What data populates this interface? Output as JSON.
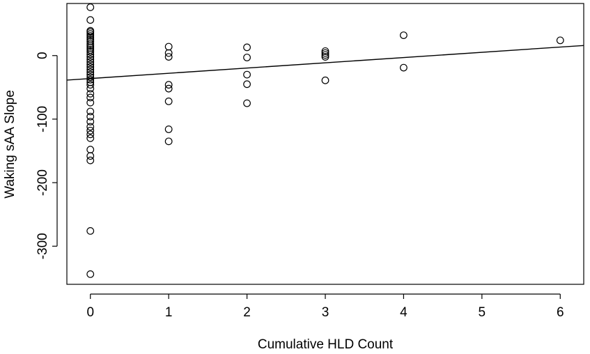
{
  "chart_data": {
    "type": "scatter",
    "xlabel": "Cumulative HLD Count",
    "ylabel": "Waking sAA Slope",
    "xlim": [
      -0.3,
      6.3
    ],
    "ylim": [
      -360,
      82
    ],
    "x_ticks": [
      0,
      1,
      2,
      3,
      4,
      5,
      6
    ],
    "y_ticks": [
      0,
      -100,
      -200,
      -300
    ],
    "grid": false,
    "legend": "none",
    "points": [
      [
        0,
        76
      ],
      [
        0,
        56
      ],
      [
        0,
        39
      ],
      [
        0,
        37
      ],
      [
        0,
        34
      ],
      [
        0,
        31
      ],
      [
        0,
        28
      ],
      [
        0,
        25
      ],
      [
        0,
        22
      ],
      [
        0,
        18
      ],
      [
        0,
        15
      ],
      [
        0,
        12
      ],
      [
        0,
        9
      ],
      [
        0,
        6
      ],
      [
        0,
        2
      ],
      [
        0,
        -2
      ],
      [
        0,
        -6
      ],
      [
        0,
        -10
      ],
      [
        0,
        -14
      ],
      [
        0,
        -18
      ],
      [
        0,
        -22
      ],
      [
        0,
        -26
      ],
      [
        0,
        -30
      ],
      [
        0,
        -34
      ],
      [
        0,
        -38
      ],
      [
        0,
        -42
      ],
      [
        0,
        -46
      ],
      [
        0,
        -52
      ],
      [
        0,
        -60
      ],
      [
        0,
        -66
      ],
      [
        0,
        -74
      ],
      [
        0,
        -88
      ],
      [
        0,
        -96
      ],
      [
        0,
        -104
      ],
      [
        0,
        -112
      ],
      [
        0,
        -118
      ],
      [
        0,
        -124
      ],
      [
        0,
        -130
      ],
      [
        0,
        -148
      ],
      [
        0,
        -158
      ],
      [
        0,
        -165
      ],
      [
        0,
        -276
      ],
      [
        0,
        -344
      ],
      [
        1,
        14
      ],
      [
        1,
        4
      ],
      [
        1,
        -2
      ],
      [
        1,
        -46
      ],
      [
        1,
        -52
      ],
      [
        1,
        -72
      ],
      [
        1,
        -116
      ],
      [
        1,
        -135
      ],
      [
        2,
        13
      ],
      [
        2,
        -3
      ],
      [
        2,
        -30
      ],
      [
        2,
        -45
      ],
      [
        2,
        -75
      ],
      [
        3,
        7
      ],
      [
        3,
        4
      ],
      [
        3,
        1
      ],
      [
        3,
        -2
      ],
      [
        3,
        -39
      ],
      [
        4,
        32
      ],
      [
        4,
        -19
      ],
      [
        6,
        24
      ]
    ],
    "fit_line": {
      "x": [
        -0.3,
        6.3
      ],
      "y": [
        -38.6,
        15.9
      ]
    }
  }
}
